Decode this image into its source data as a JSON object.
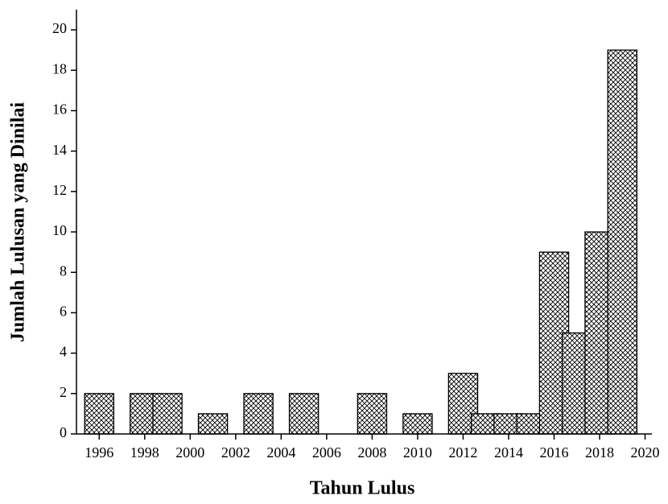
{
  "chart_data": {
    "type": "bar",
    "xlabel": "Tahun Lulus",
    "ylabel": "Jumlah Lulusan yang Dinilai",
    "x": [
      1996,
      1998,
      1999,
      2001,
      2003,
      2005,
      2008,
      2010,
      2012,
      2013,
      2014,
      2015,
      2016,
      2017,
      2018,
      2019
    ],
    "values": [
      2,
      2,
      2,
      1,
      2,
      2,
      2,
      1,
      3,
      1,
      1,
      1,
      9,
      5,
      10,
      19
    ],
    "color": "#000000",
    "xlim": [
      1995,
      2020.3
    ],
    "xticks": [
      1996,
      1998,
      2000,
      2002,
      2004,
      2006,
      2008,
      2010,
      2012,
      2014,
      2016,
      2018,
      2020
    ],
    "ylim": [
      0,
      21
    ],
    "yticks": [
      0,
      2,
      4,
      6,
      8,
      10,
      12,
      14,
      16,
      18,
      20
    ]
  }
}
